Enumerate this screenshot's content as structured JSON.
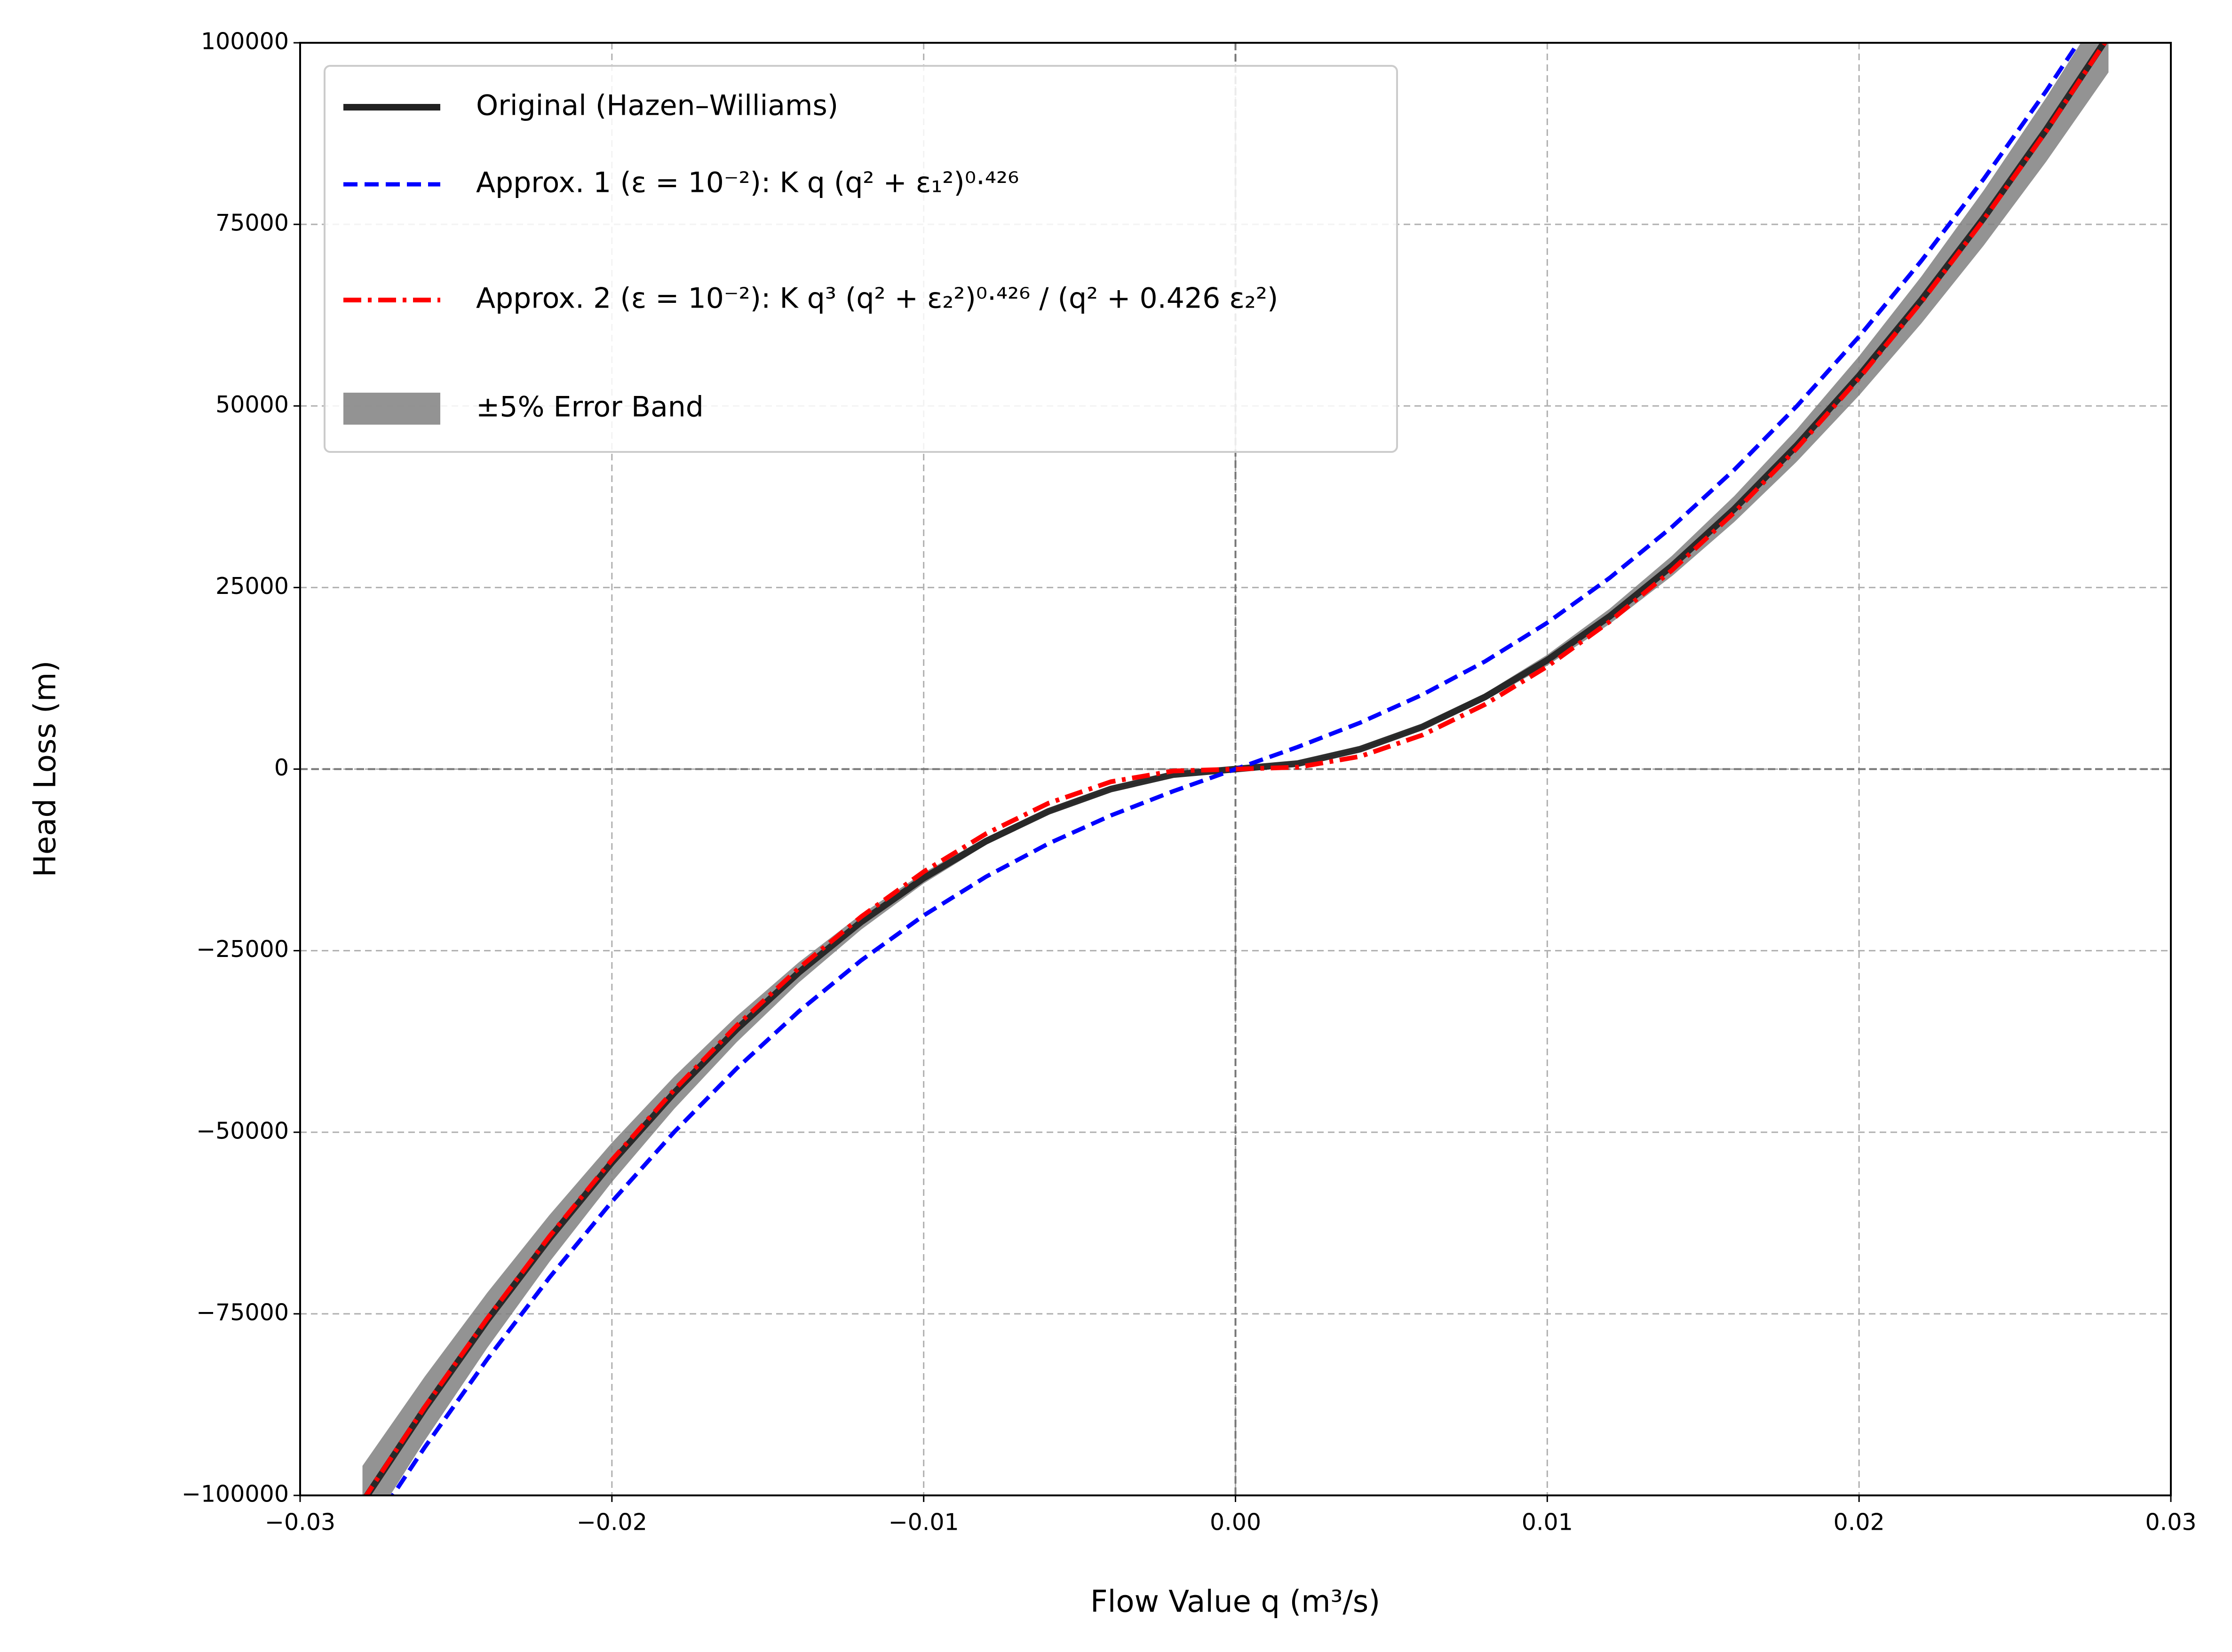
{
  "chart_data": {
    "type": "line",
    "xlabel": "Flow Value q (m³/s)",
    "ylabel": "Head Loss (m)",
    "x": [
      -0.028,
      -0.026,
      -0.024,
      -0.022,
      -0.02,
      -0.018,
      -0.016,
      -0.014,
      -0.012,
      -0.01,
      -0.008,
      -0.006,
      -0.004,
      -0.002,
      0,
      0.002,
      0.004,
      0.006,
      0.008,
      0.01,
      0.012,
      0.014,
      0.016,
      0.018,
      0.02,
      0.022,
      0.024,
      0.026,
      0.028
    ],
    "series": [
      {
        "name": "Original (Hazen–Williams)",
        "color": "#222222",
        "style": "solid",
        "values": [
          -100976,
          -88031,
          -75900,
          -64608,
          -54149,
          -44553,
          -35820,
          -27974,
          -21026,
          -15000,
          -9923,
          -5825,
          -2749,
          -761,
          0,
          761,
          2749,
          5825,
          9923,
          15000,
          21026,
          27974,
          35820,
          44553,
          54149,
          64608,
          75900,
          88031,
          100976
        ]
      },
      {
        "name": "Approx. 1 (ε = 10⁻²): K q (q² + ε₁²)⁰·⁴²⁶",
        "color": "#0000ff",
        "style": "dashed",
        "values": [
          -106277,
          -93358,
          -81260,
          -69990,
          -59553,
          -49961,
          -41223,
          -33342,
          -26322,
          -20152,
          -14815,
          -10260,
          -6392,
          -3051,
          0,
          3051,
          6392,
          10260,
          14815,
          20152,
          26322,
          33342,
          41223,
          49961,
          59553,
          69990,
          81260,
          93358,
          106277
        ]
      },
      {
        "name": "Approx. 2 (ε = 10⁻²): K q³ (q² + ε₂²)⁰·⁴²⁶ / (q² + 0.426 ε₂²)",
        "color": "#ff0000",
        "style": "dashdot",
        "values": [
          -100800,
          -87824,
          -75663,
          -64328,
          -53821,
          -44155,
          -35341,
          -27389,
          -20312,
          -14132,
          -8895,
          -4699,
          -1745,
          -262,
          0,
          262,
          1745,
          4699,
          8895,
          14132,
          20312,
          27389,
          35341,
          44155,
          53821,
          64328,
          75663,
          87824,
          100800
        ]
      }
    ],
    "band": {
      "name": "±5% Error Band",
      "color": "#808080",
      "lower": [
        -106025,
        -92433,
        -79695,
        -67838,
        -56856,
        -46781,
        -37611,
        -29373,
        -22077,
        -15750,
        -10419,
        -6116,
        -2886,
        -799,
        0,
        723,
        2612,
        5534,
        9427,
        14250,
        19975,
        26575,
        34029,
        42325,
        51442,
        61378,
        72105,
        83629,
        95927
      ],
      "upper": [
        -95927,
        -83629,
        -72105,
        -61378,
        -51442,
        -42325,
        -34029,
        -26575,
        -19975,
        -14250,
        -9427,
        -5534,
        -2612,
        -723,
        0,
        799,
        2886,
        6116,
        10419,
        15750,
        22077,
        29373,
        37611,
        46781,
        56856,
        67838,
        79695,
        92433,
        106025
      ]
    },
    "xlim": [
      -0.03,
      0.03
    ],
    "xticks": [
      {
        "value": -0.03,
        "label": "−0.03"
      },
      {
        "value": -0.02,
        "label": "−0.02"
      },
      {
        "value": -0.01,
        "label": "−0.01"
      },
      {
        "value": 0,
        "label": "0.00"
      },
      {
        "value": 0.01,
        "label": "0.01"
      },
      {
        "value": 0.02,
        "label": "0.02"
      },
      {
        "value": 0.03,
        "label": "0.03"
      }
    ],
    "ylim": [
      -100000,
      100000
    ],
    "yticks": [
      {
        "value": -100000,
        "label": "−100000"
      },
      {
        "value": -75000,
        "label": "−75000"
      },
      {
        "value": -50000,
        "label": "−50000"
      },
      {
        "value": -25000,
        "label": "−25000"
      },
      0,
      25000,
      50000,
      75000,
      100000
    ],
    "grid": true,
    "legend": "upper left"
  }
}
